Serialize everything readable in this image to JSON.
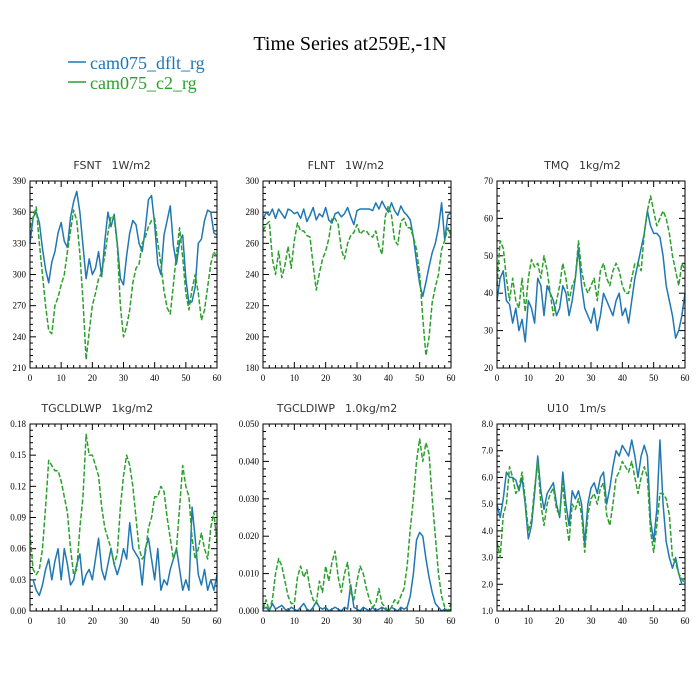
{
  "figure": {
    "title": "Time Series at259E,-1N",
    "legend": [
      {
        "name": "cam075_dflt_rg",
        "color": "#1f77b4",
        "style": "solid"
      },
      {
        "name": "cam075_c2_rg",
        "color": "#2ca02c",
        "style": "dashed"
      }
    ]
  },
  "chart_data": [
    {
      "type": "line",
      "title": "FSNT",
      "unit": "1W/m2",
      "xlim": [
        0,
        60
      ],
      "ylim": [
        210,
        390
      ],
      "xticks": [
        0,
        10,
        20,
        30,
        40,
        50,
        60
      ],
      "yticks": [
        210,
        240,
        270,
        300,
        330,
        360,
        390
      ],
      "ytick_labels": [
        "210",
        "240",
        "270",
        "300",
        "330",
        "360",
        "390"
      ],
      "series": [
        {
          "name": "cam075_dflt_rg",
          "color": "#1f77b4",
          "dash": false,
          "values": [
            330,
            355,
            360,
            350,
            325,
            305,
            292,
            312,
            322,
            340,
            350,
            332,
            326,
            355,
            370,
            380,
            360,
            328,
            296,
            315,
            300,
            306,
            322,
            298,
            332,
            360,
            346,
            358,
            330,
            296,
            290,
            318,
            340,
            352,
            348,
            330,
            322,
            344,
            372,
            376,
            348,
            310,
            300,
            338,
            352,
            366,
            328,
            310,
            332,
            338,
            296,
            272,
            274,
            288,
            330,
            334,
            352,
            362,
            360,
            340,
            338
          ]
        },
        {
          "name": "cam075_c2_rg",
          "color": "#2ca02c",
          "dash": true,
          "values": [
            345,
            355,
            365,
            330,
            300,
            270,
            246,
            243,
            270,
            278,
            290,
            300,
            322,
            342,
            362,
            352,
            320,
            275,
            218,
            245,
            270,
            282,
            296,
            302,
            318,
            340,
            356,
            355,
            328,
            270,
            240,
            250,
            266,
            292,
            306,
            310,
            330,
            336,
            346,
            352,
            354,
            330,
            310,
            284,
            268,
            262,
            290,
            320,
            345,
            316,
            282,
            266,
            286,
            300,
            282,
            256,
            266,
            288,
            310,
            322,
            316
          ]
        }
      ]
    },
    {
      "type": "line",
      "title": "FLNT",
      "unit": "1W/m2",
      "xlim": [
        0,
        60
      ],
      "ylim": [
        180,
        300
      ],
      "xticks": [
        0,
        10,
        20,
        30,
        40,
        50,
        60
      ],
      "yticks": [
        180,
        200,
        220,
        240,
        260,
        280,
        300
      ],
      "ytick_labels": [
        "180",
        "200",
        "220",
        "240",
        "260",
        "280",
        "300"
      ],
      "series": [
        {
          "name": "cam075_dflt_rg",
          "color": "#1f77b4",
          "dash": false,
          "values": [
            275,
            280,
            278,
            282,
            276,
            282,
            279,
            276,
            282,
            281,
            279,
            280,
            276,
            282,
            274,
            278,
            283,
            275,
            279,
            277,
            283,
            275,
            273,
            279,
            280,
            277,
            279,
            283,
            277,
            272,
            281,
            282,
            282,
            282,
            282,
            281,
            286,
            282,
            287,
            283,
            280,
            286,
            281,
            278,
            284,
            280,
            278,
            275,
            264,
            248,
            234,
            226,
            235,
            245,
            254,
            260,
            270,
            286,
            262,
            278,
            280
          ]
        },
        {
          "name": "cam075_c2_rg",
          "color": "#2ca02c",
          "dash": true,
          "values": [
            268,
            272,
            274,
            250,
            240,
            255,
            238,
            246,
            258,
            244,
            262,
            273,
            268,
            268,
            265,
            264,
            246,
            230,
            241,
            250,
            255,
            263,
            276,
            276,
            272,
            256,
            250,
            260,
            265,
            267,
            272,
            266,
            268,
            268,
            265,
            264,
            268,
            258,
            253,
            277,
            284,
            278,
            262,
            259,
            274,
            276,
            270,
            270,
            264,
            256,
            240,
            212,
            188,
            200,
            222,
            232,
            240,
            256,
            262,
            270,
            265
          ]
        }
      ]
    },
    {
      "type": "line",
      "title": "TMQ",
      "unit": "1kg/m2",
      "xlim": [
        0,
        60
      ],
      "ylim": [
        20,
        70
      ],
      "xticks": [
        0,
        10,
        20,
        30,
        40,
        50,
        60
      ],
      "yticks": [
        20,
        30,
        40,
        50,
        60,
        70
      ],
      "ytick_labels": [
        "20",
        "30",
        "40",
        "50",
        "60",
        "70"
      ],
      "series": [
        {
          "name": "cam075_dflt_rg",
          "color": "#1f77b4",
          "dash": false,
          "values": [
            38,
            44,
            46,
            38,
            37,
            32,
            36,
            30,
            33,
            27,
            38,
            36,
            32,
            44,
            42,
            34,
            42,
            40,
            38,
            34,
            36,
            42,
            40,
            34,
            38,
            44,
            52,
            42,
            36,
            34,
            32,
            36,
            30,
            34,
            40,
            38,
            36,
            34,
            38,
            40,
            34,
            36,
            32,
            38,
            44,
            48,
            52,
            56,
            62,
            58,
            56,
            56,
            55,
            50,
            42,
            38,
            34,
            28,
            30,
            34,
            40
          ]
        },
        {
          "name": "cam075_c2_rg",
          "color": "#2ca02c",
          "dash": true,
          "values": [
            42,
            54,
            52,
            44,
            38,
            44,
            38,
            36,
            44,
            35,
            44,
            49,
            47,
            48,
            44,
            50,
            46,
            40,
            34,
            38,
            42,
            48,
            44,
            38,
            42,
            44,
            54,
            46,
            42,
            40,
            42,
            44,
            38,
            46,
            48,
            44,
            42,
            46,
            48,
            46,
            42,
            40,
            40,
            44,
            48,
            48,
            46,
            56,
            62,
            66,
            62,
            58,
            60,
            62,
            60,
            56,
            50,
            46,
            42,
            48,
            46
          ]
        }
      ]
    },
    {
      "type": "line",
      "title": "TGCLDLWP",
      "unit": "1kg/m2",
      "xlim": [
        0,
        60
      ],
      "ylim": [
        0,
        0.18
      ],
      "xticks": [
        0,
        10,
        20,
        30,
        40,
        50,
        60
      ],
      "yticks": [
        0,
        0.03,
        0.06,
        0.09,
        0.12,
        0.15,
        0.18
      ],
      "ytick_labels": [
        "0.00",
        "0.03",
        "0.06",
        "0.09",
        "0.12",
        "0.15",
        "0.18"
      ],
      "series": [
        {
          "name": "cam075_dflt_rg",
          "color": "#1f77b4",
          "dash": false,
          "values": [
            0.03,
            0.03,
            0.02,
            0.015,
            0.025,
            0.04,
            0.05,
            0.03,
            0.048,
            0.06,
            0.03,
            0.06,
            0.045,
            0.025,
            0.03,
            0.045,
            0.055,
            0.025,
            0.035,
            0.04,
            0.03,
            0.05,
            0.07,
            0.04,
            0.03,
            0.045,
            0.06,
            0.045,
            0.035,
            0.045,
            0.06,
            0.05,
            0.085,
            0.06,
            0.055,
            0.05,
            0.025,
            0.06,
            0.07,
            0.05,
            0.03,
            0.06,
            0.02,
            0.03,
            0.025,
            0.04,
            0.05,
            0.06,
            0.04,
            0.02,
            0.03,
            0.02,
            0.1,
            0.07,
            0.035,
            0.025,
            0.04,
            0.02,
            0.03,
            0.02,
            0.035
          ]
        },
        {
          "name": "cam075_c2_rg",
          "color": "#2ca02c",
          "dash": true,
          "values": [
            0.075,
            0.04,
            0.035,
            0.04,
            0.06,
            0.1,
            0.145,
            0.14,
            0.135,
            0.135,
            0.125,
            0.11,
            0.095,
            0.06,
            0.035,
            0.04,
            0.08,
            0.11,
            0.17,
            0.15,
            0.15,
            0.14,
            0.13,
            0.1,
            0.08,
            0.07,
            0.06,
            0.045,
            0.055,
            0.1,
            0.13,
            0.15,
            0.14,
            0.12,
            0.09,
            0.06,
            0.05,
            0.055,
            0.08,
            0.09,
            0.11,
            0.11,
            0.12,
            0.115,
            0.09,
            0.07,
            0.05,
            0.06,
            0.1,
            0.14,
            0.12,
            0.11,
            0.07,
            0.05,
            0.06,
            0.075,
            0.06,
            0.05,
            0.08,
            0.095,
            0.065
          ]
        }
      ]
    },
    {
      "type": "line",
      "title": "TGCLDIWP",
      "unit": "1.0kg/m2",
      "xlim": [
        0,
        60
      ],
      "ylim": [
        0,
        0.05
      ],
      "xticks": [
        0,
        10,
        20,
        30,
        40,
        50,
        60
      ],
      "yticks": [
        0,
        0.01,
        0.02,
        0.03,
        0.04,
        0.05
      ],
      "ytick_labels": [
        "0.000",
        "0.010",
        "0.020",
        "0.030",
        "0.040",
        "0.050"
      ],
      "series": [
        {
          "name": "cam075_dflt_rg",
          "color": "#1f77b4",
          "dash": false,
          "values": [
            0.0005,
            0.001,
            0.0,
            0.002,
            0.0005,
            0.001,
            0.0015,
            0.0005,
            0.0,
            0.001,
            0.0005,
            0.0,
            0.001,
            0.002,
            0.0005,
            0.0,
            0.001,
            0.0025,
            0.001,
            0.0005,
            0.001,
            0.0,
            0.0005,
            0.001,
            0.0005,
            0.0,
            0.001,
            0.0005,
            0.007,
            0.001,
            0.0005,
            0.0,
            0.001,
            0.0005,
            0.0,
            0.001,
            0.0,
            0.0005,
            0.001,
            0.0005,
            0.0,
            0.001,
            0.0005,
            0.0,
            0.001,
            0.0005,
            0.001,
            0.004,
            0.01,
            0.019,
            0.021,
            0.02,
            0.014,
            0.009,
            0.005,
            0.002,
            0.001,
            0.0,
            0.0005,
            0.0,
            0.0005
          ]
        },
        {
          "name": "cam075_c2_rg",
          "color": "#2ca02c",
          "dash": true,
          "values": [
            0.0005,
            0.003,
            0.0,
            0.003,
            0.01,
            0.014,
            0.012,
            0.008,
            0.004,
            0.002,
            0.002,
            0.009,
            0.012,
            0.009,
            0.011,
            0.006,
            0.003,
            0.002,
            0.008,
            0.005,
            0.012,
            0.008,
            0.013,
            0.016,
            0.009,
            0.005,
            0.01,
            0.013,
            0.005,
            0.003,
            0.008,
            0.012,
            0.01,
            0.006,
            0.003,
            0.001,
            0.002,
            0.006,
            0.002,
            0.001,
            0.0,
            0.001,
            0.003,
            0.002,
            0.004,
            0.006,
            0.012,
            0.022,
            0.03,
            0.04,
            0.046,
            0.04,
            0.045,
            0.042,
            0.03,
            0.02,
            0.01,
            0.004,
            0.001,
            0.0,
            0.002
          ]
        }
      ]
    },
    {
      "type": "line",
      "title": "U10",
      "unit": "1m/s",
      "xlim": [
        0,
        60
      ],
      "ylim": [
        1.0,
        8.0
      ],
      "xticks": [
        0,
        10,
        20,
        30,
        40,
        50,
        60
      ],
      "yticks": [
        1,
        2,
        3,
        4,
        5,
        6,
        7,
        8
      ],
      "ytick_labels": [
        "1.0",
        "2.0",
        "3.0",
        "4.0",
        "5.0",
        "6.0",
        "7.0",
        "8.0"
      ],
      "series": [
        {
          "name": "cam075_dflt_rg",
          "color": "#1f77b4",
          "dash": false,
          "values": [
            5.0,
            4.5,
            5.2,
            6.2,
            6.0,
            6.0,
            5.9,
            5.5,
            6.0,
            5.0,
            3.7,
            4.2,
            5.4,
            6.8,
            5.5,
            4.8,
            5.4,
            5.6,
            5.8,
            5.0,
            4.5,
            6.2,
            5.0,
            4.2,
            5.5,
            5.2,
            5.5,
            5.0,
            3.5,
            5.0,
            5.6,
            5.8,
            5.4,
            6.0,
            6.2,
            5.0,
            5.6,
            6.4,
            7.0,
            6.8,
            7.2,
            7.0,
            6.8,
            7.4,
            6.8,
            6.0,
            6.8,
            7.2,
            6.8,
            4.4,
            3.6,
            4.8,
            7.4,
            5.0,
            3.6,
            3.0,
            2.6,
            3.0,
            2.4,
            2.0,
            2.0
          ]
        },
        {
          "name": "cam075_c2_rg",
          "color": "#2ca02c",
          "dash": true,
          "values": [
            3.6,
            3.0,
            4.6,
            5.0,
            6.4,
            6.0,
            5.4,
            5.6,
            6.2,
            5.2,
            4.0,
            4.4,
            5.6,
            6.6,
            5.0,
            4.2,
            5.0,
            5.4,
            5.6,
            4.8,
            4.6,
            5.8,
            4.4,
            3.6,
            5.0,
            4.8,
            5.2,
            4.6,
            3.2,
            4.6,
            5.2,
            5.4,
            5.0,
            5.6,
            5.8,
            4.6,
            4.2,
            5.0,
            6.0,
            6.2,
            6.6,
            6.4,
            6.2,
            6.6,
            6.0,
            5.4,
            6.0,
            6.4,
            6.0,
            4.0,
            3.2,
            4.2,
            5.4,
            5.4,
            5.2,
            4.6,
            3.0,
            2.8,
            2.4,
            2.2,
            2.0
          ]
        }
      ]
    }
  ]
}
